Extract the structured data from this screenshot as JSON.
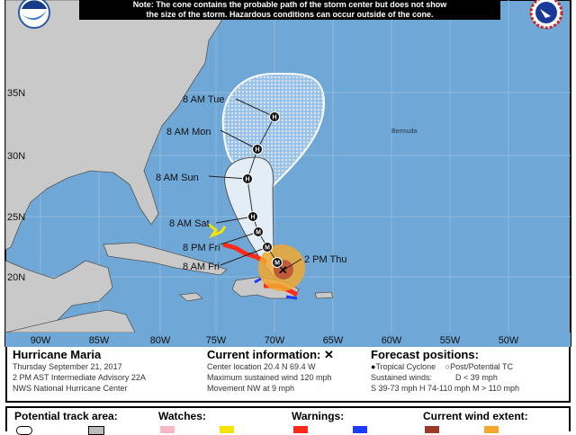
{
  "note": {
    "line1": "Note: The cone contains the probable path of the storm center but does not show",
    "line2": "the size of the storm. Hazardous conditions can occur outside of the cone."
  },
  "logos": {
    "left": "NOAA",
    "right": "NWS"
  },
  "map": {
    "lat_labels": [
      "35N",
      "30N",
      "25N",
      "20N"
    ],
    "lon_labels": [
      "90W",
      "85W",
      "80W",
      "75W",
      "70W",
      "65W",
      "60W",
      "55W",
      "50W"
    ],
    "place_labels": {
      "bermuda": "Bermuda"
    },
    "forecast_labels": [
      "8 AM Tue",
      "8 AM Mon",
      "8 AM Sun",
      "8 AM Sat",
      "8 PM Fri",
      "8 AM Fri",
      "2 PM Thu"
    ],
    "point_markers": [
      "H",
      "H",
      "H",
      "H",
      "M",
      "M",
      "M"
    ],
    "colors": {
      "ocean": "#6fa8d6",
      "land": "#c9c9c9",
      "cone": "#e3edf5",
      "hurricane_warning": "#ff2a1a",
      "tropical_storm_warning": "#1a3cff",
      "tropical_storm_watch": "#f2e400",
      "hurricane_wind": "#9c3a2a",
      "tropical_storm_wind": "#f0a830"
    }
  },
  "info": {
    "storm_name": "Hurricane Maria",
    "date": "Thursday September 21, 2017",
    "advisory": "2 PM AST Intermediate Advisory 22A",
    "center": "NWS National Hurricane Center",
    "current_heading": "Current information: ✕",
    "location": "Center location 20.4 N 69.4 W",
    "max_wind": "Maximum sustained wind 120 mph",
    "movement": "Movement NW at 9 mph",
    "forecast_heading": "Forecast positions:",
    "tropical_cyclone": "Tropical Cyclone",
    "post_tc": "Post/Potential TC",
    "sustained_winds": "Sustained winds:",
    "d_range": "D < 39 mph",
    "s_range": "S 39-73 mph",
    "h_range": "H 74-110 mph",
    "m_range": "M > 110 mph"
  },
  "legend": {
    "track_area": "Potential track area:",
    "watches": "Watches:",
    "warnings": "Warnings:",
    "wind_extent": "Current wind extent:"
  }
}
